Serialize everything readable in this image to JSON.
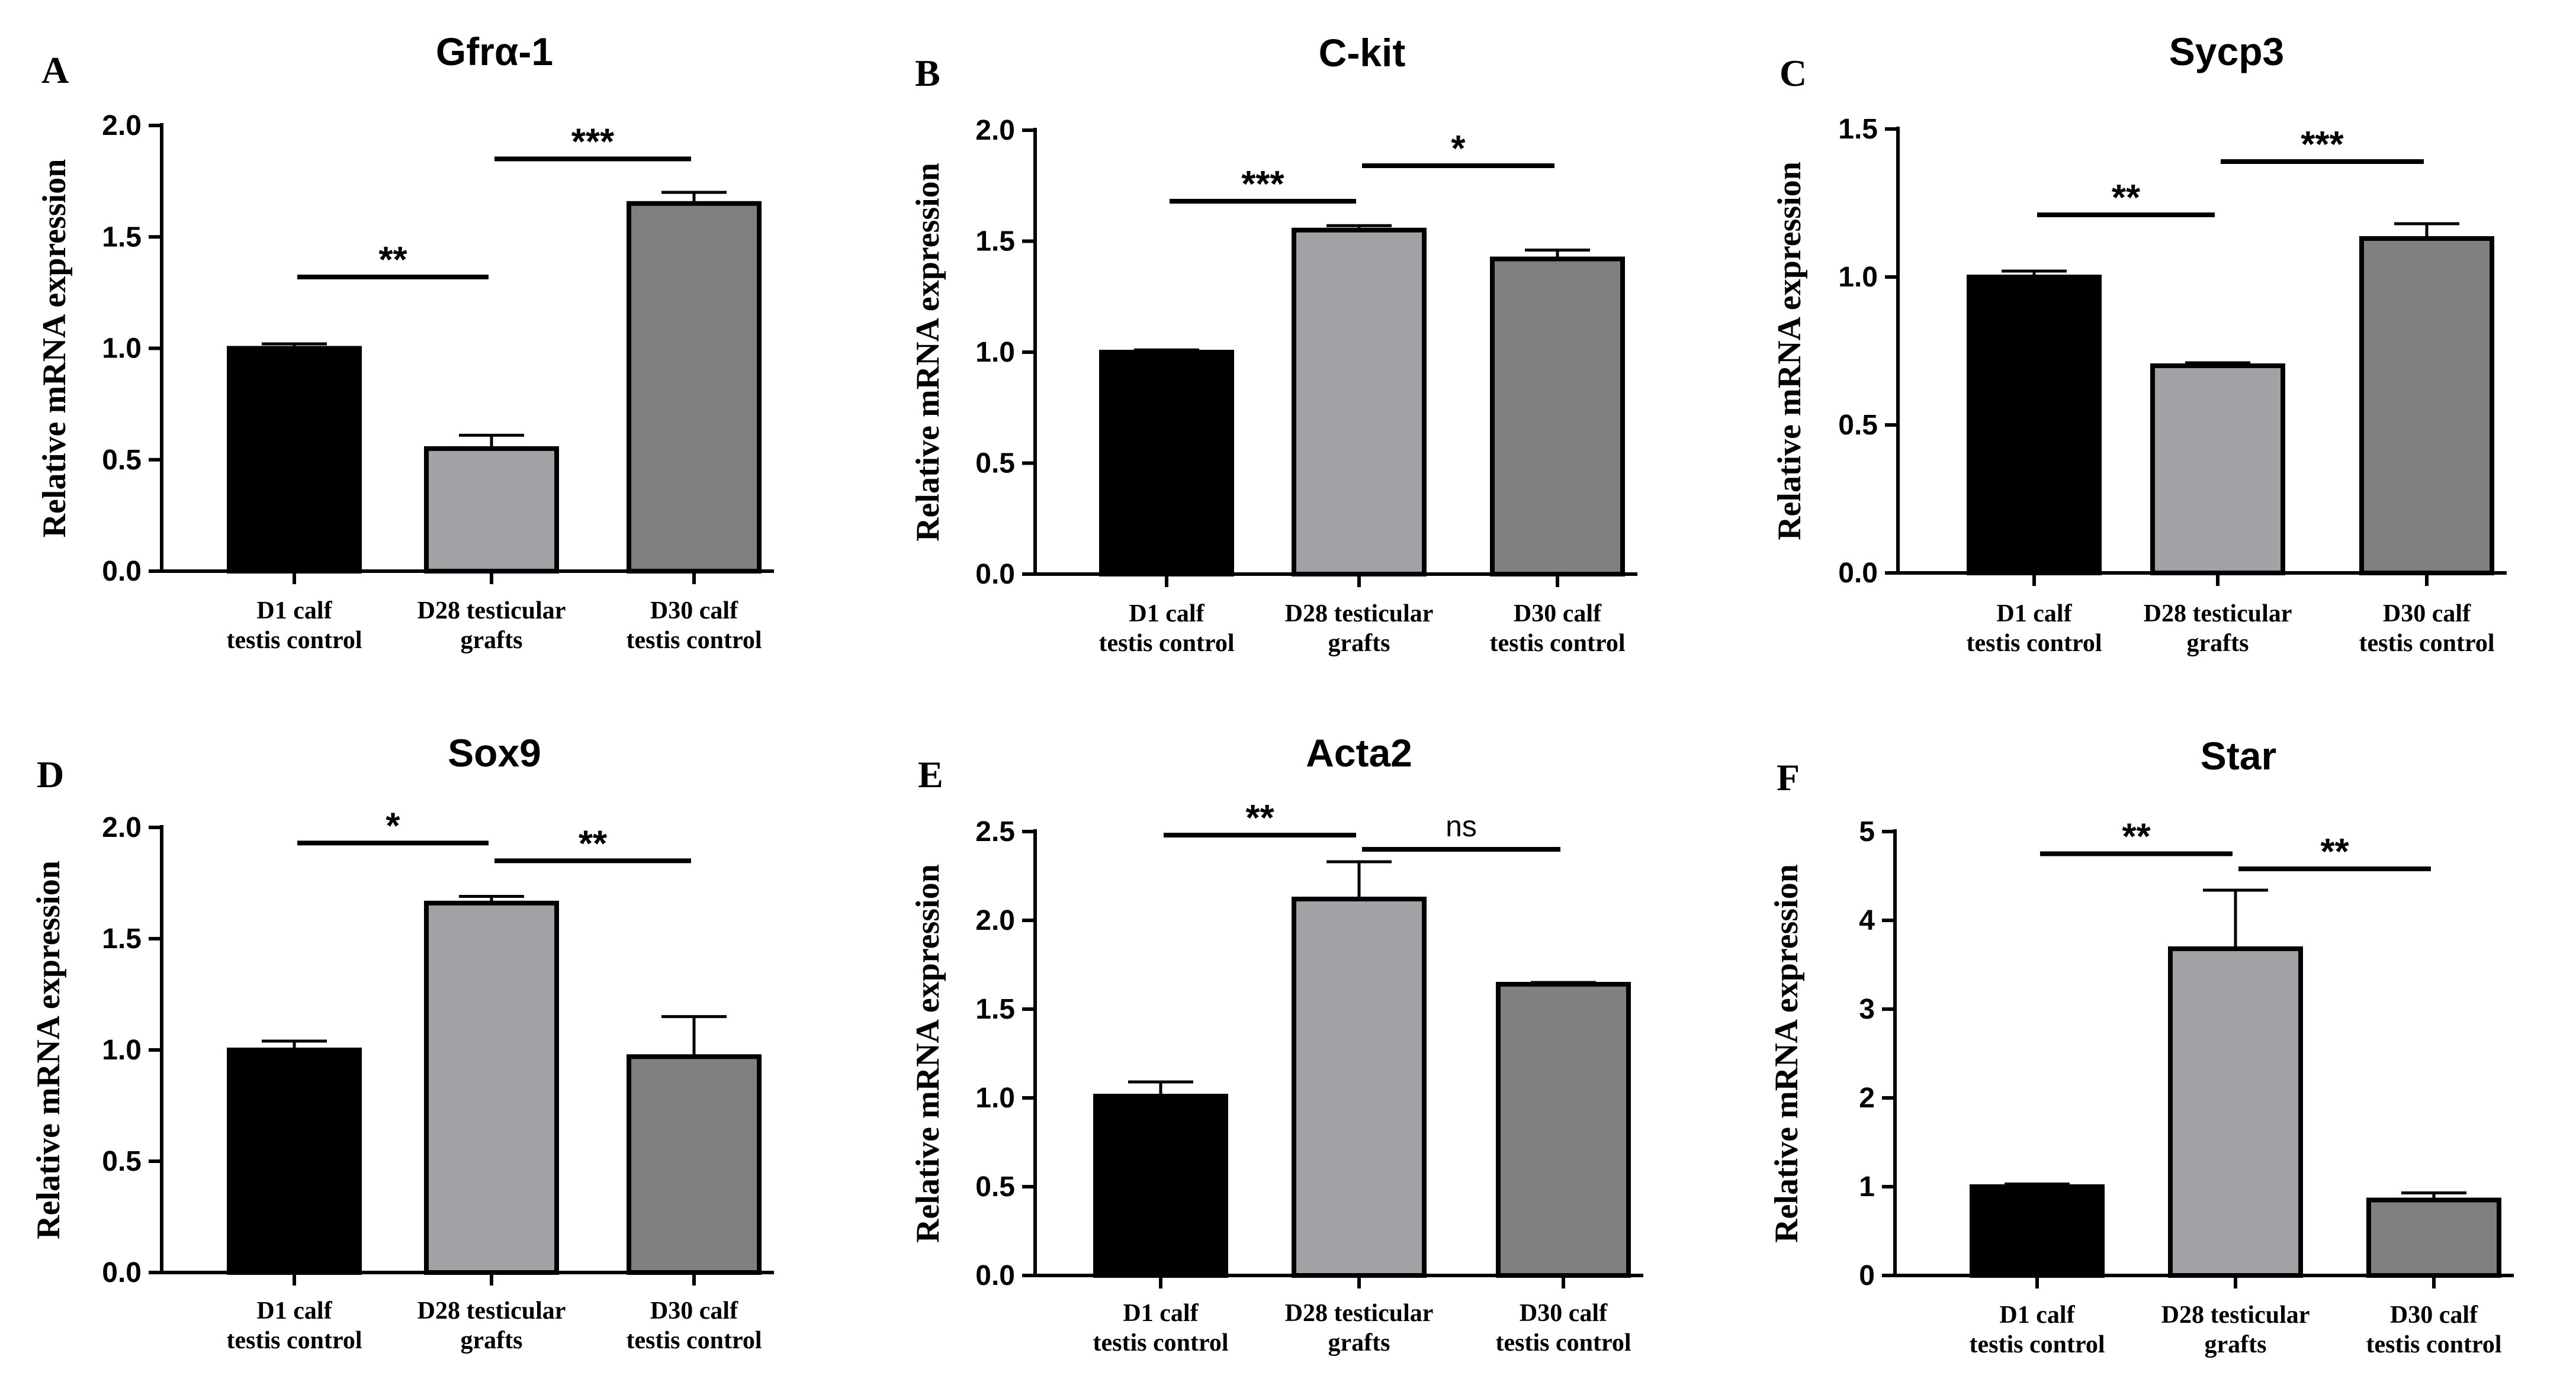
{
  "figure": {
    "ylabel": "Relative mRNA expression",
    "colors": {
      "D1": "#000000",
      "D28": "#a2a2a6",
      "D30": "#808080",
      "stroke": "#000000"
    }
  },
  "chart_data": [
    {
      "panel": "A",
      "title": "Gfrα-1",
      "type": "bar",
      "ylabel": "Relative mRNA expression",
      "categories": [
        [
          "D1 calf",
          "testis control"
        ],
        [
          "D28 testicular",
          "grafts"
        ],
        [
          "D30 calf",
          "testis control"
        ]
      ],
      "values": [
        1.0,
        0.55,
        1.65
      ],
      "errors": [
        0.02,
        0.06,
        0.05
      ],
      "ylim": [
        0,
        2.0
      ],
      "yticks": [
        0.0,
        0.5,
        1.0,
        1.5,
        2.0
      ],
      "yticklabels": [
        "0.0",
        "0.5",
        "1.0",
        "1.5",
        "2.0"
      ],
      "significance": [
        {
          "pair": [
            0,
            1
          ],
          "label": "**",
          "y": 1.32
        },
        {
          "pair": [
            1,
            2
          ],
          "label": "***",
          "y": 1.85
        }
      ]
    },
    {
      "panel": "B",
      "title": "C-kit",
      "type": "bar",
      "ylabel": "Relative mRNA expression",
      "categories": [
        [
          "D1 calf",
          "testis control"
        ],
        [
          "D28 testicular",
          "grafts"
        ],
        [
          "D30 calf",
          "testis control"
        ]
      ],
      "values": [
        1.0,
        1.55,
        1.42
      ],
      "errors": [
        0.01,
        0.02,
        0.04
      ],
      "ylim": [
        0,
        2.0
      ],
      "yticks": [
        0.0,
        0.5,
        1.0,
        1.5,
        2.0
      ],
      "yticklabels": [
        "0.0",
        "0.5",
        "1.0",
        "1.5",
        "2.0"
      ],
      "significance": [
        {
          "pair": [
            0,
            1
          ],
          "label": "***",
          "y": 1.68
        },
        {
          "pair": [
            1,
            2
          ],
          "label": "*",
          "y": 1.84
        }
      ]
    },
    {
      "panel": "C",
      "title": "Sycp3",
      "type": "bar",
      "ylabel": "Relative mRNA expression",
      "categories": [
        [
          "D1 calf",
          "testis control"
        ],
        [
          "D28 testicular",
          "grafts"
        ],
        [
          "D30 calf",
          "testis control"
        ]
      ],
      "values": [
        1.0,
        0.7,
        1.13
      ],
      "errors": [
        0.02,
        0.01,
        0.05
      ],
      "ylim": [
        0,
        1.5
      ],
      "yticks": [
        0.0,
        0.5,
        1.0,
        1.5
      ],
      "yticklabels": [
        "0.0",
        "0.5",
        "1.0",
        "1.5"
      ],
      "significance": [
        {
          "pair": [
            0,
            1
          ],
          "label": "**",
          "y": 1.21
        },
        {
          "pair": [
            1,
            2
          ],
          "label": "***",
          "y": 1.39
        }
      ]
    },
    {
      "panel": "D",
      "title": "Sox9",
      "type": "bar",
      "ylabel": "Relative mRNA expression",
      "categories": [
        [
          "D1 calf",
          "testis control"
        ],
        [
          "D28 testicular",
          "grafts"
        ],
        [
          "D30 calf",
          "testis control"
        ]
      ],
      "values": [
        1.0,
        1.66,
        0.97
      ],
      "errors": [
        0.04,
        0.03,
        0.18
      ],
      "ylim": [
        0,
        2.0
      ],
      "yticks": [
        0.0,
        0.5,
        1.0,
        1.5,
        2.0
      ],
      "yticklabels": [
        "0.0",
        "0.5",
        "1.0",
        "1.5",
        "2.0"
      ],
      "significance": [
        {
          "pair": [
            0,
            1
          ],
          "label": "*",
          "y": 1.93
        },
        {
          "pair": [
            1,
            2
          ],
          "label": "**",
          "y": 1.85
        }
      ]
    },
    {
      "panel": "E",
      "title": "Acta2",
      "type": "bar",
      "ylabel": "Relative mRNA expression",
      "categories": [
        [
          "D1 calf",
          "testis control"
        ],
        [
          "D28 testicular",
          "grafts"
        ],
        [
          "D30 calf",
          "testis control"
        ]
      ],
      "values": [
        1.01,
        2.12,
        1.64
      ],
      "errors": [
        0.08,
        0.21,
        0.01
      ],
      "ylim": [
        0,
        2.5
      ],
      "yticks": [
        0.0,
        0.5,
        1.0,
        1.5,
        2.0,
        2.5
      ],
      "yticklabels": [
        "0.0",
        "0.5",
        "1.0",
        "1.5",
        "2.0",
        "2.5"
      ],
      "significance": [
        {
          "pair": [
            0,
            1
          ],
          "label": "**",
          "y": 2.48
        },
        {
          "pair": [
            1,
            2
          ],
          "label": "ns",
          "y": 2.4
        }
      ]
    },
    {
      "panel": "F",
      "title": "Star",
      "type": "bar",
      "ylabel": "Relative mRNA expression",
      "categories": [
        [
          "D1 calf",
          "testis control"
        ],
        [
          "D28 testicular",
          "grafts"
        ],
        [
          "D30 calf",
          "testis control"
        ]
      ],
      "values": [
        1.0,
        3.68,
        0.85
      ],
      "errors": [
        0.03,
        0.66,
        0.08
      ],
      "ylim": [
        0,
        5
      ],
      "yticks": [
        0,
        1,
        2,
        3,
        4,
        5
      ],
      "yticklabels": [
        "0",
        "1",
        "2",
        "3",
        "4",
        "5"
      ],
      "significance": [
        {
          "pair": [
            0,
            1
          ],
          "label": "**",
          "y": 4.75
        },
        {
          "pair": [
            1,
            2
          ],
          "label": "**",
          "y": 4.58
        }
      ]
    }
  ]
}
